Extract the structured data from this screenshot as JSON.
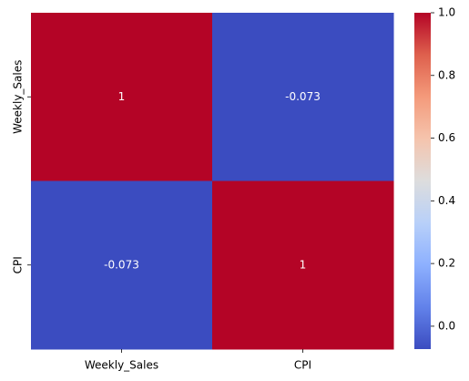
{
  "chart_data": {
    "type": "heatmap",
    "x_categories": [
      "Weekly_Sales",
      "CPI"
    ],
    "y_categories": [
      "Weekly_Sales",
      "CPI"
    ],
    "values": [
      [
        1,
        -0.073
      ],
      [
        -0.073,
        1
      ]
    ],
    "colormap": "coolwarm",
    "annotate": true,
    "colorbar": {
      "lim": [
        -0.073,
        1
      ],
      "ticks": [
        {
          "value": 0,
          "label": "0.0"
        },
        0.2,
        0.4,
        0.6,
        0.8,
        {
          "value": 1,
          "label": "1.0"
        }
      ]
    }
  }
}
